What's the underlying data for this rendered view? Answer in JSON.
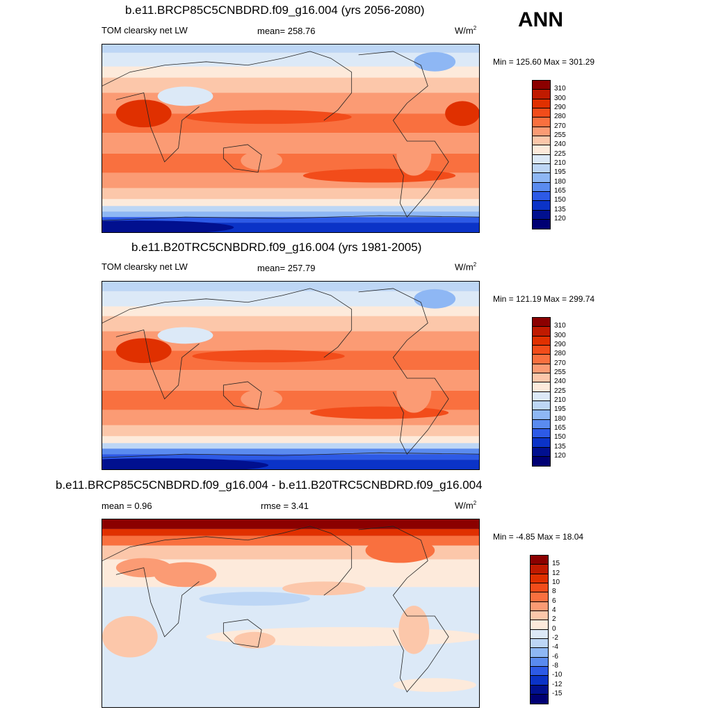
{
  "season": "ANN",
  "panels": [
    {
      "title": "b.e11.BRCP85C5CNBDRD.f09_g16.004 (yrs 2056-2080)",
      "left_label": "TOM clearsky net LW",
      "center_label": "mean= 258.76",
      "units": "W/m",
      "units_sup": "2",
      "minmax": "Min = 125.60 Max = 301.29",
      "colorbar": {
        "labels": [
          "310",
          "300",
          "290",
          "280",
          "270",
          "255",
          "240",
          "225",
          "210",
          "195",
          "180",
          "165",
          "150",
          "135",
          "120"
        ],
        "colors": [
          "#8b0000",
          "#c01a00",
          "#e03000",
          "#f24c1a",
          "#f9703f",
          "#fb9b74",
          "#fcc7aa",
          "#fdeadb",
          "#dce9f7",
          "#bdd6f5",
          "#8eb7f4",
          "#5a8bef",
          "#2d5ae6",
          "#0b33c7",
          "#01108f",
          "#000073"
        ]
      }
    },
    {
      "title": "b.e11.B20TRC5CNBDRD.f09_g16.004 (yrs 1981-2005)",
      "left_label": "TOM clearsky net LW",
      "center_label": "mean= 257.79",
      "units": "W/m",
      "units_sup": "2",
      "minmax": "Min = 121.19 Max = 299.74",
      "colorbar": {
        "labels": [
          "310",
          "300",
          "290",
          "280",
          "270",
          "255",
          "240",
          "225",
          "210",
          "195",
          "180",
          "165",
          "150",
          "135",
          "120"
        ],
        "colors": [
          "#8b0000",
          "#c01a00",
          "#e03000",
          "#f24c1a",
          "#f9703f",
          "#fb9b74",
          "#fcc7aa",
          "#fdeadb",
          "#dce9f7",
          "#bdd6f5",
          "#8eb7f4",
          "#5a8bef",
          "#2d5ae6",
          "#0b33c7",
          "#01108f",
          "#000073"
        ]
      }
    },
    {
      "title": "b.e11.BRCP85C5CNBDRD.f09_g16.004 - b.e11.B20TRC5CNBDRD.f09_g16.004",
      "left_label": "mean =   0.96",
      "center_label": "rmse =   3.41",
      "units": "W/m",
      "units_sup": "2",
      "minmax": "Min =  -4.85 Max =  18.04",
      "colorbar": {
        "labels": [
          "15",
          "12",
          "10",
          "8",
          "6",
          "4",
          "2",
          "0",
          "-2",
          "-4",
          "-6",
          "-8",
          "-10",
          "-12",
          "-15"
        ],
        "colors": [
          "#8b0000",
          "#c01a00",
          "#e03000",
          "#f24c1a",
          "#f9703f",
          "#fb9b74",
          "#fcc7aa",
          "#fdeadb",
          "#dce9f7",
          "#bdd6f5",
          "#8eb7f4",
          "#5a8bef",
          "#2d5ae6",
          "#0b33c7",
          "#01108f",
          "#000073"
        ]
      }
    }
  ]
}
